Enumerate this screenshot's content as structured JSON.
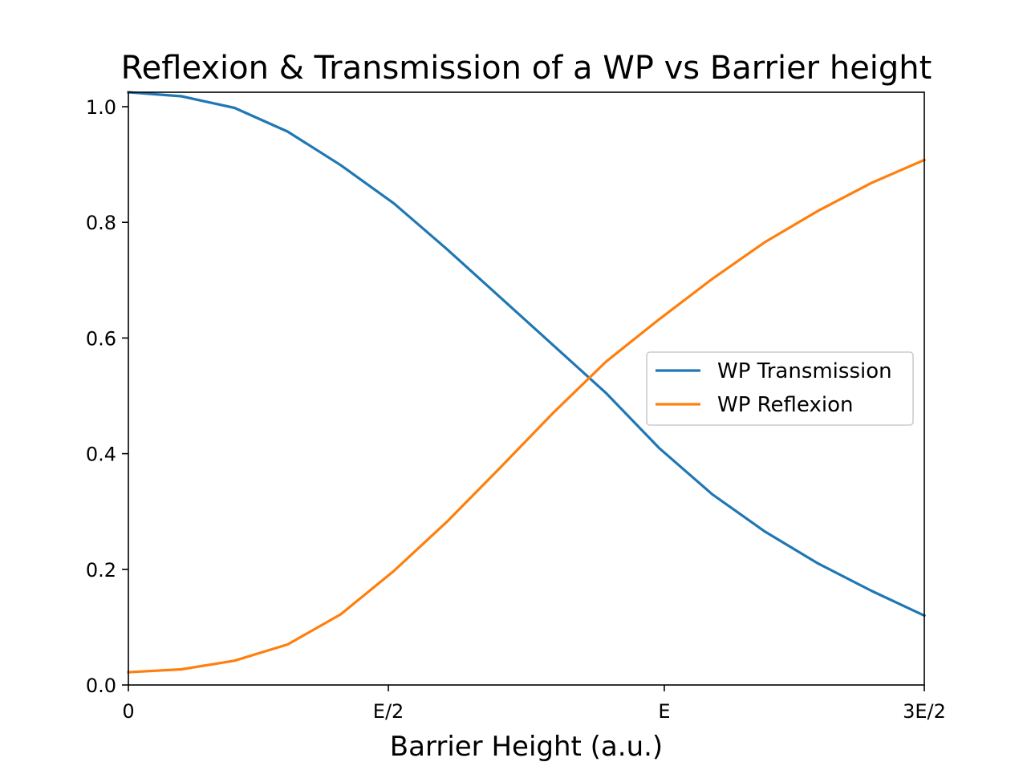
{
  "chart_data": {
    "type": "line",
    "title": "Reflexion & Transmission of a WP vs Barrier height",
    "xlabel": "Barrier Height (a.u.)",
    "ylabel": "",
    "xlim": [
      0,
      1.5
    ],
    "ylim": [
      0.0,
      1.025
    ],
    "x_ticks": [
      {
        "value": 0,
        "label": "0"
      },
      {
        "value": 0.49,
        "label": "E/2"
      },
      {
        "value": 1.01,
        "label": "E"
      },
      {
        "value": 1.5,
        "label": "3E/2"
      }
    ],
    "y_ticks": [
      {
        "value": 0.0,
        "label": "0.0"
      },
      {
        "value": 0.2,
        "label": "0.2"
      },
      {
        "value": 0.4,
        "label": "0.4"
      },
      {
        "value": 0.6,
        "label": "0.6"
      },
      {
        "value": 0.8,
        "label": "0.8"
      },
      {
        "value": 1.0,
        "label": "1.0"
      }
    ],
    "grid": false,
    "legend_position": "center-right",
    "x": [
      0,
      0.1,
      0.2,
      0.3,
      0.4,
      0.5,
      0.6,
      0.7,
      0.8,
      0.9,
      1.0,
      1.1,
      1.2,
      1.3,
      1.4,
      1.5
    ],
    "series": [
      {
        "name": "WP Transmission",
        "color": "#1f77b4",
        "values": [
          1.025,
          1.018,
          0.998,
          0.957,
          0.899,
          0.833,
          0.754,
          0.671,
          0.588,
          0.505,
          0.41,
          0.33,
          0.265,
          0.21,
          0.163,
          0.12
        ]
      },
      {
        "name": "WP Reflexion",
        "color": "#ff7f0e",
        "values": [
          0.022,
          0.027,
          0.042,
          0.07,
          0.122,
          0.197,
          0.282,
          0.375,
          0.47,
          0.559,
          0.632,
          0.702,
          0.766,
          0.82,
          0.868,
          0.908
        ]
      }
    ]
  }
}
